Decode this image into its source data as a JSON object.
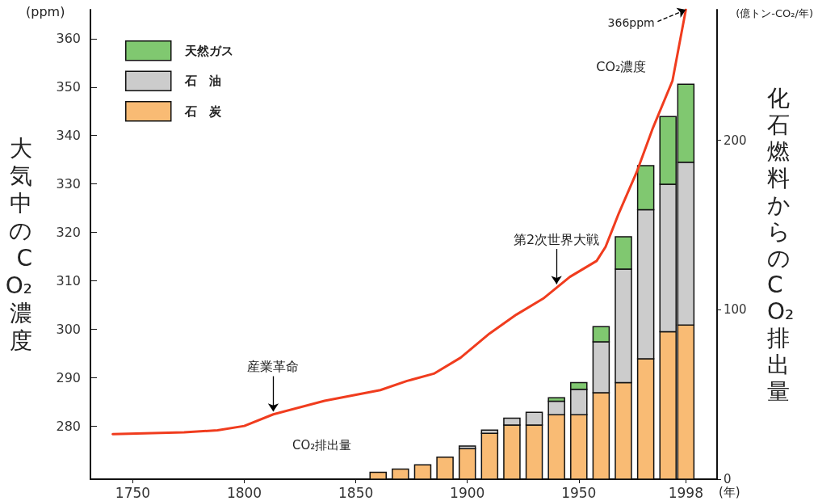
{
  "chart_data": {
    "type": "bar",
    "ylabel": "大気中のCO₂濃度",
    "y2label": "化石燃料からのCO₂排出量",
    "xlabel": "(年)",
    "x": [
      1860,
      1870,
      1880,
      1890,
      1900,
      1910,
      1920,
      1930,
      1940,
      1950,
      1960,
      1970,
      1980,
      1990,
      1998
    ],
    "stacked": true,
    "series": [
      {
        "name": "石　炭",
        "axis": "y2",
        "color": "#f9bb74",
        "values": [
          4,
          6,
          8.5,
          13,
          18,
          27,
          32,
          32,
          38,
          38,
          51,
          57,
          71,
          87,
          91
        ]
      },
      {
        "name": "石　油",
        "axis": "y2",
        "color": "#cccccc",
        "values": [
          null,
          null,
          null,
          null,
          1.5,
          2,
          4,
          7.5,
          8,
          15,
          30,
          67,
          88,
          87,
          96
        ]
      },
      {
        "name": "天然ガス",
        "axis": "y2",
        "color": "#80c870",
        "values": [
          null,
          null,
          null,
          null,
          null,
          null,
          null,
          null,
          2,
          4,
          9,
          19,
          26,
          40,
          46
        ]
      },
      {
        "name": "CO₂濃度",
        "type": "line",
        "color": "#f03c1e",
        "x": [
          1741,
          1773,
          1788,
          1800,
          1813,
          1836,
          1861,
          1873,
          1885,
          1897,
          1910,
          1922,
          1934,
          1946,
          1958,
          1962,
          1968,
          1976,
          1983,
          1992,
          1998
        ],
        "values": [
          278.3,
          278.7,
          279.1,
          280,
          282.4,
          285.2,
          287.4,
          289.3,
          290.8,
          294.1,
          299.1,
          303,
          306.3,
          310.8,
          314.1,
          317,
          324,
          332.5,
          341.3,
          351.3,
          366
        ]
      }
    ],
    "xlim": [
      1731,
      2012
    ],
    "xticks": [
      1750,
      1800,
      1850,
      1900,
      1950,
      1998
    ],
    "ylim": [
      269,
      366
    ],
    "yticks": [
      280,
      290,
      300,
      310,
      320,
      330,
      340,
      350,
      360
    ],
    "y2lim": [
      0,
      277
    ],
    "y2ticks": [
      0,
      100,
      200
    ],
    "annotations": [
      "(ppm)",
      "(億トン-CO₂/年)",
      "CO₂排出量",
      {
        "text": "366ppm",
        "x": 1998,
        "y": 366
      },
      {
        "text": "第2次世界大戦",
        "x": 1940,
        "y": 309.3
      },
      {
        "text": "産業革命",
        "x": 1813,
        "y": 283
      }
    ],
    "legend": "top left",
    "marker": "none",
    "grid": false
  }
}
